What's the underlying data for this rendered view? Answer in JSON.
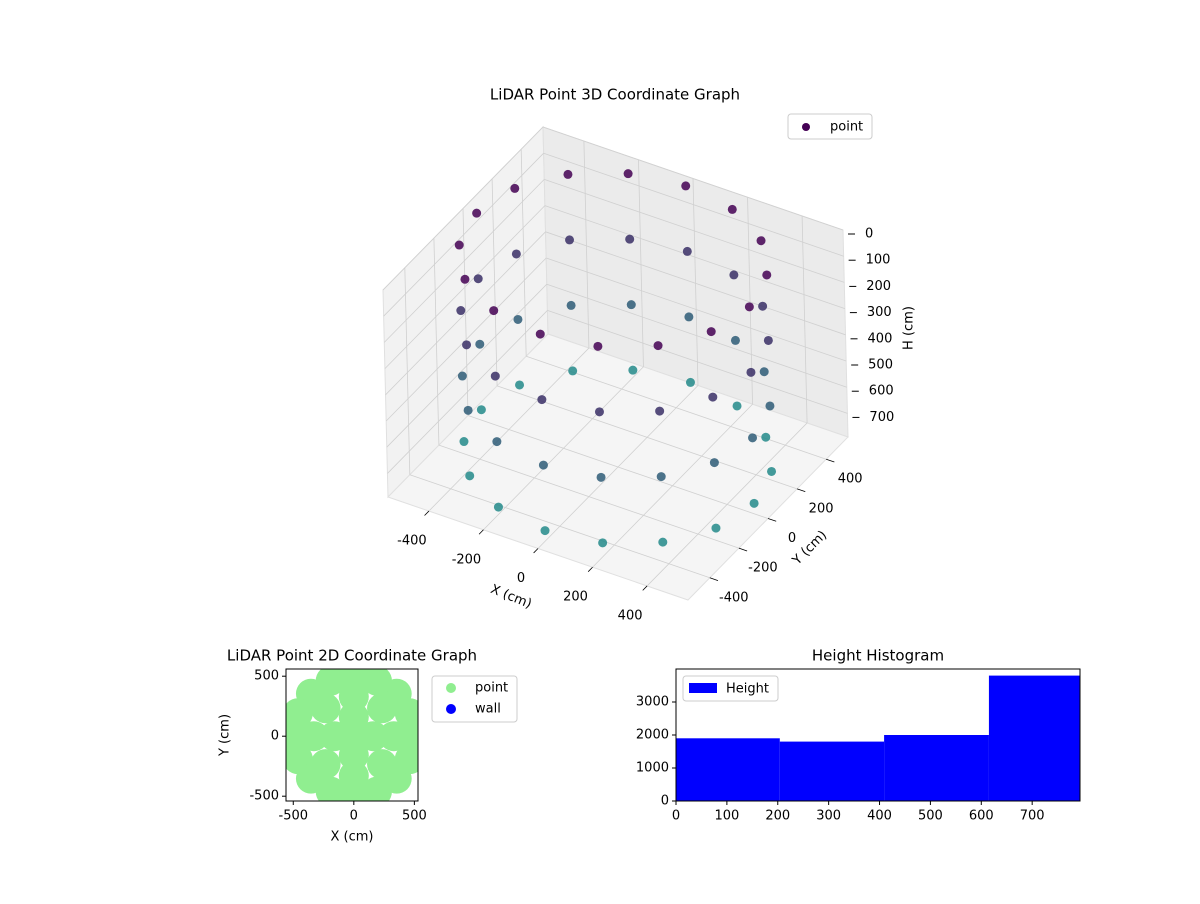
{
  "chart_data": [
    {
      "type": "scatter3d",
      "title": "LiDAR Point 3D Coordinate Graph",
      "xlabel": "X (cm)",
      "ylabel": "Y (cm)",
      "zlabel": "H (cm)",
      "xlim": [
        -550,
        550
      ],
      "ylim": [
        -550,
        550
      ],
      "zlim": [
        0,
        790
      ],
      "z_inverted": true,
      "xticks": [
        -400,
        -200,
        0,
        200,
        400
      ],
      "yticks": [
        -400,
        -200,
        0,
        200,
        400
      ],
      "zticks": [
        0,
        100,
        200,
        300,
        400,
        500,
        600,
        700
      ],
      "grid": true,
      "legend": "upper right",
      "colormap": [
        "#440154",
        "#21918c"
      ],
      "series": [
        {
          "name": "point",
          "color": "#440154",
          "x": [
            500,
            462,
            354,
            191,
            0,
            -191,
            -354,
            -462,
            -500,
            -462,
            -354,
            -191,
            0,
            191,
            354,
            462,
            500,
            462,
            354,
            191,
            0,
            -191,
            -354,
            -462,
            -500,
            -462,
            -354,
            -191,
            0,
            191,
            354,
            462,
            500,
            462,
            354,
            191,
            0,
            -191,
            -354,
            -462,
            -500,
            -462,
            -354,
            -191,
            0,
            191,
            354,
            462,
            500,
            462,
            354,
            191,
            0,
            -191,
            -354,
            -462,
            -500,
            -462,
            -354,
            -191,
            0,
            191,
            354,
            462
          ],
          "y": [
            0,
            191,
            354,
            462,
            500,
            462,
            354,
            191,
            0,
            -191,
            -354,
            -462,
            -500,
            -462,
            -354,
            -191,
            0,
            191,
            354,
            462,
            500,
            462,
            354,
            191,
            0,
            -191,
            -354,
            -462,
            -500,
            -462,
            -354,
            -191,
            0,
            191,
            354,
            462,
            500,
            462,
            354,
            191,
            0,
            -191,
            -354,
            -462,
            -500,
            -462,
            -354,
            -191,
            0,
            191,
            354,
            462,
            500,
            462,
            354,
            191,
            0,
            -191,
            -354,
            -462,
            -500,
            -462,
            -354,
            -191
          ],
          "z": [
            750,
            750,
            750,
            750,
            750,
            750,
            750,
            750,
            750,
            750,
            750,
            750,
            750,
            750,
            750,
            750,
            500,
            500,
            500,
            500,
            500,
            500,
            500,
            500,
            500,
            500,
            500,
            500,
            500,
            500,
            500,
            500,
            250,
            250,
            250,
            250,
            250,
            250,
            250,
            250,
            250,
            250,
            250,
            250,
            250,
            250,
            250,
            250,
            0,
            0,
            0,
            0,
            0,
            0,
            0,
            0,
            0,
            0,
            0,
            0,
            0,
            0,
            0,
            0
          ]
        }
      ]
    },
    {
      "type": "scatter",
      "title": "LiDAR Point 2D Coordinate Graph",
      "xlabel": "X (cm)",
      "ylabel": "Y (cm)",
      "xlim": [
        -560,
        530
      ],
      "ylim": [
        -540,
        560
      ],
      "xticks": [
        -500,
        0,
        500
      ],
      "yticks": [
        -500,
        0,
        500
      ],
      "legend": "outside right",
      "series": [
        {
          "name": "point",
          "color": "#90ee90",
          "x": [
            500,
            462,
            354,
            191,
            0,
            -191,
            -354,
            -462,
            -500,
            -462,
            -354,
            -191,
            0,
            191,
            354,
            462,
            330,
            233,
            0,
            -233,
            -330,
            -233,
            0,
            233,
            160,
            0,
            -160,
            0,
            0
          ],
          "y": [
            0,
            191,
            354,
            462,
            500,
            462,
            354,
            191,
            0,
            -191,
            -354,
            -462,
            -500,
            -462,
            -354,
            -191,
            0,
            233,
            330,
            233,
            0,
            -233,
            -330,
            -233,
            0,
            160,
            0,
            -160,
            0
          ]
        },
        {
          "name": "wall",
          "color": "#0000ff",
          "x": [],
          "y": []
        }
      ]
    },
    {
      "type": "histogram",
      "title": "Height Histogram",
      "xlim": [
        0,
        794
      ],
      "ylim": [
        0,
        4000
      ],
      "xticks": [
        0,
        100,
        200,
        300,
        400,
        500,
        600,
        700
      ],
      "yticks": [
        0,
        1000,
        2000,
        3000
      ],
      "legend": "upper left",
      "series": [
        {
          "name": "Height",
          "color": "#0000ff",
          "bins": [
            0,
            204,
            409,
            615,
            794
          ],
          "values": [
            1900,
            1800,
            2000,
            3800
          ]
        }
      ]
    }
  ]
}
